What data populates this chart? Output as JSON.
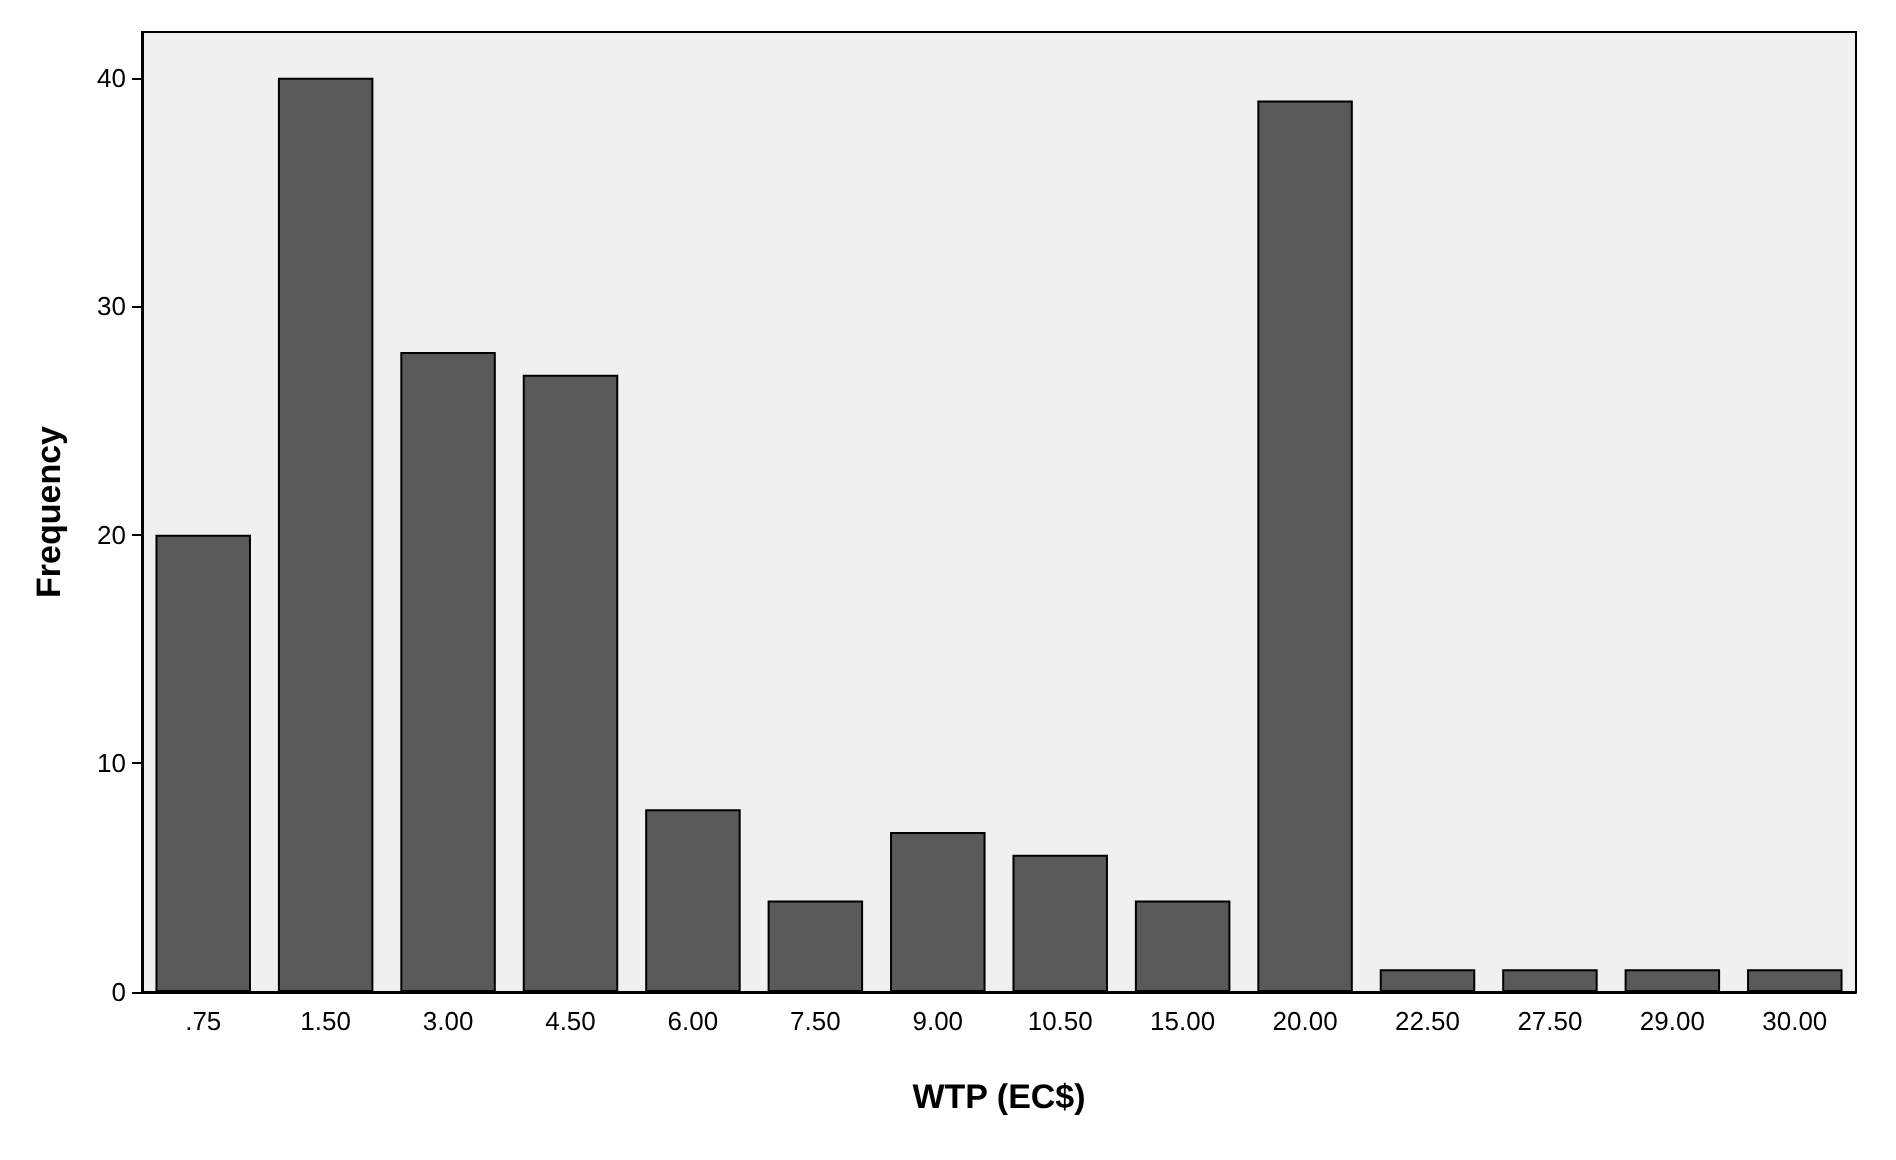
{
  "chart_data": {
    "type": "bar",
    "xlabel": "WTP (EC$)",
    "ylabel": "Frequency",
    "categories": [
      ".75",
      "1.50",
      "3.00",
      "4.50",
      "6.00",
      "7.50",
      "9.00",
      "10.50",
      "15.00",
      "20.00",
      "22.50",
      "27.50",
      "29.00",
      "30.00"
    ],
    "values": [
      20,
      40,
      28,
      27,
      8,
      4,
      7,
      6,
      4,
      39,
      1,
      1,
      1,
      1
    ],
    "color": "#595959",
    "ylim": [
      0,
      42
    ],
    "yticks": [
      0,
      10,
      20,
      30,
      40
    ],
    "grid": false
  }
}
